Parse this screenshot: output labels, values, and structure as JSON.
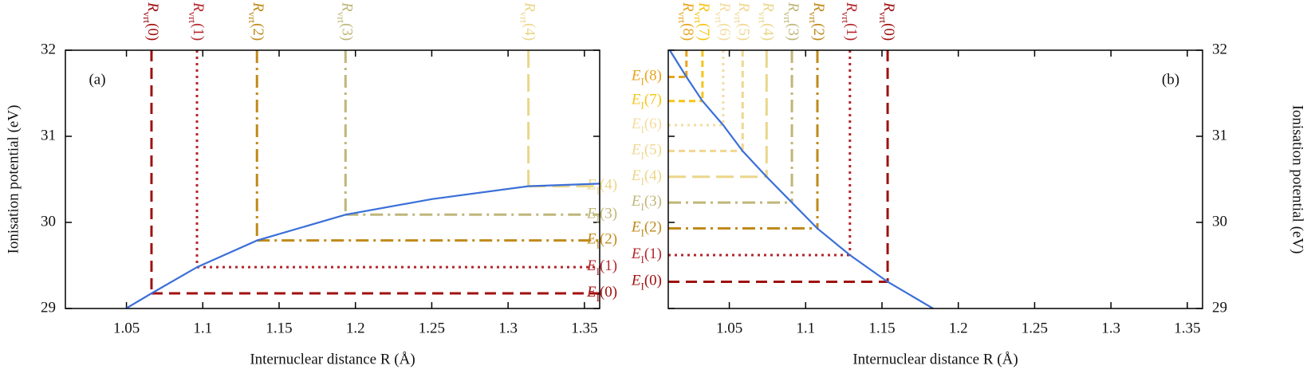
{
  "chart_data": [
    {
      "type": "line",
      "panel_label": "(a)",
      "xlabel": "Internuclear distance R (Å)",
      "ylabel": "Ionisation potential (eV)",
      "y_axis_side": "left",
      "levels_extend": "right",
      "xlim": [
        1.01,
        1.36
      ],
      "ylim": [
        29,
        32
      ],
      "xticks": [
        1.05,
        1.1,
        1.15,
        1.2,
        1.25,
        1.3,
        1.35
      ],
      "yticks": [
        29,
        30,
        31,
        32
      ],
      "curve": {
        "color": "#3b6fd8",
        "x": [
          1.0497,
          1.0664,
          1.0962,
          1.1355,
          1.1935,
          1.25,
          1.3133,
          1.36
        ],
        "y": [
          29.0,
          29.176,
          29.48,
          29.79,
          30.09,
          30.27,
          30.42,
          30.45
        ]
      },
      "vline_symbol": "R",
      "vline_sub": "vrt",
      "hline_symbol": "E",
      "hline_sub": "I",
      "levels": [
        {
          "label": "(0)",
          "color": "#a01010",
          "style": "dashed",
          "R_vrt": 1.0664,
          "E_I": 29.176
        },
        {
          "label": "(1)",
          "color": "#b3262c",
          "style": "dotted",
          "R_vrt": 1.0962,
          "E_I": 29.48
        },
        {
          "label": "(2)",
          "color": "#c08a1a",
          "style": "dash-dot",
          "R_vrt": 1.1355,
          "E_I": 29.79
        },
        {
          "label": "(3)",
          "color": "#bfb678",
          "style": "dash-dot",
          "R_vrt": 1.1935,
          "E_I": 30.09
        },
        {
          "label": "(4)",
          "color": "#ead68a",
          "style": "long-dash",
          "R_vrt": 1.3133,
          "E_I": 30.42
        }
      ]
    },
    {
      "type": "line",
      "panel_label": "(b)",
      "xlabel": "Internuclear distance R (Å)",
      "ylabel": "Ionisation potential (eV)",
      "y_axis_side": "right",
      "levels_extend": "left",
      "xlim": [
        1.01,
        1.36
      ],
      "ylim": [
        29,
        32
      ],
      "xticks": [
        1.05,
        1.1,
        1.15,
        1.2,
        1.25,
        1.3,
        1.35
      ],
      "yticks": [
        29,
        30,
        31,
        32
      ],
      "curve": {
        "color": "#3b6fd8",
        "x": [
          1.011,
          1.0219,
          1.0324,
          1.046,
          1.0587,
          1.0744,
          1.091,
          1.1077,
          1.129,
          1.1537,
          1.1835
        ],
        "y": [
          32.0,
          31.69,
          31.41,
          31.13,
          30.83,
          30.53,
          30.23,
          29.93,
          29.62,
          29.31,
          29.0
        ]
      },
      "vline_symbol": "R",
      "vline_sub": "vrt",
      "hline_symbol": "E",
      "hline_sub": "I",
      "levels": [
        {
          "label": "(0)",
          "color": "#a01010",
          "style": "dashed",
          "R_vrt": 1.1537,
          "E_I": 29.31
        },
        {
          "label": "(1)",
          "color": "#b3262c",
          "style": "dotted",
          "R_vrt": 1.129,
          "E_I": 29.62
        },
        {
          "label": "(2)",
          "color": "#c08a1a",
          "style": "dash-dot",
          "R_vrt": 1.1077,
          "E_I": 29.93
        },
        {
          "label": "(3)",
          "color": "#bfb678",
          "style": "dash-dot",
          "R_vrt": 1.091,
          "E_I": 30.23
        },
        {
          "label": "(4)",
          "color": "#ead68a",
          "style": "long-dash",
          "R_vrt": 1.0744,
          "E_I": 30.53
        },
        {
          "label": "(5)",
          "color": "#f0d690",
          "style": "short-dash",
          "R_vrt": 1.0587,
          "E_I": 30.83
        },
        {
          "label": "(6)",
          "color": "#f2dca0",
          "style": "dotted",
          "R_vrt": 1.046,
          "E_I": 31.13
        },
        {
          "label": "(7)",
          "color": "#f5c518",
          "style": "short-dash",
          "R_vrt": 1.0324,
          "E_I": 31.41
        },
        {
          "label": "(8)",
          "color": "#e8a41c",
          "style": "short-dash",
          "R_vrt": 1.0219,
          "E_I": 31.69
        }
      ]
    }
  ]
}
